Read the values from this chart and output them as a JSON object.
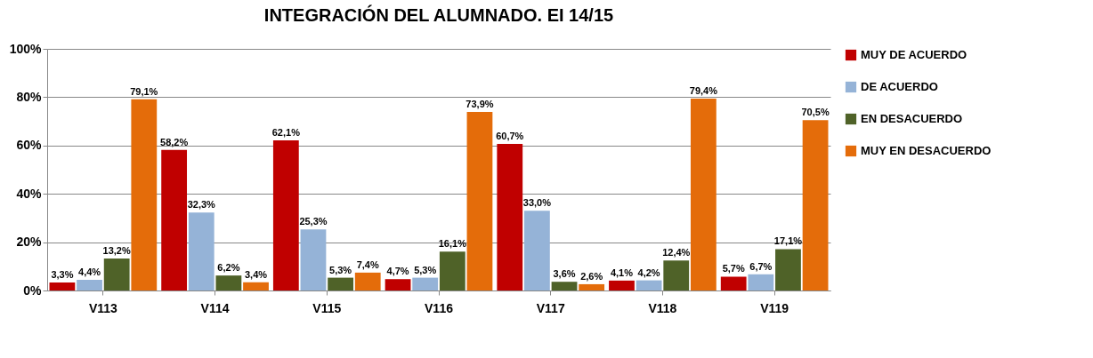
{
  "chart_data": {
    "type": "bar",
    "title": "INTEGRACIÓN DEL ALUMNADO. EI 14/15",
    "categories": [
      "V113",
      "V114",
      "V115",
      "V116",
      "V117",
      "V118",
      "V119"
    ],
    "series": [
      {
        "name": "MUY DE ACUERDO",
        "color": "#c00000",
        "values": [
          3.3,
          58.2,
          62.1,
          4.7,
          60.7,
          4.1,
          5.7
        ],
        "value_labels": [
          "3,3%",
          "58,2%",
          "62,1%",
          "4,7%",
          "60,7%",
          "4,1%",
          "5,7%"
        ]
      },
      {
        "name": "DE ACUERDO",
        "color": "#95b3d7",
        "values": [
          4.4,
          32.3,
          25.3,
          5.3,
          33.0,
          4.2,
          6.7
        ],
        "value_labels": [
          "4,4%",
          "32,3%",
          "25,3%",
          "5,3%",
          "33,0%",
          "4,2%",
          "6,7%"
        ]
      },
      {
        "name": "EN DESACUERDO",
        "color": "#4f6228",
        "values": [
          13.2,
          6.2,
          5.3,
          16.1,
          3.6,
          12.4,
          17.1
        ],
        "value_labels": [
          "13,2%",
          "6,2%",
          "5,3%",
          "16,1%",
          "3,6%",
          "12,4%",
          "17,1%"
        ]
      },
      {
        "name": "MUY  EN DESACUERDO",
        "color": "#e46c0a",
        "values": [
          79.1,
          3.4,
          7.4,
          73.9,
          2.6,
          79.4,
          70.5
        ],
        "value_labels": [
          "79,1%",
          "3,4%",
          "7,4%",
          "73,9%",
          "2,6%",
          "79,4%",
          "70,5%"
        ]
      }
    ],
    "ylim": [
      0,
      100
    ],
    "yticks": [
      {
        "value": 0,
        "label": "0%"
      },
      {
        "value": 20,
        "label": "20%"
      },
      {
        "value": 40,
        "label": "40%"
      },
      {
        "value": 60,
        "label": "60%"
      },
      {
        "value": 80,
        "label": "80%"
      },
      {
        "value": 100,
        "label": "100%"
      }
    ],
    "grid": "y",
    "legend": "right"
  }
}
